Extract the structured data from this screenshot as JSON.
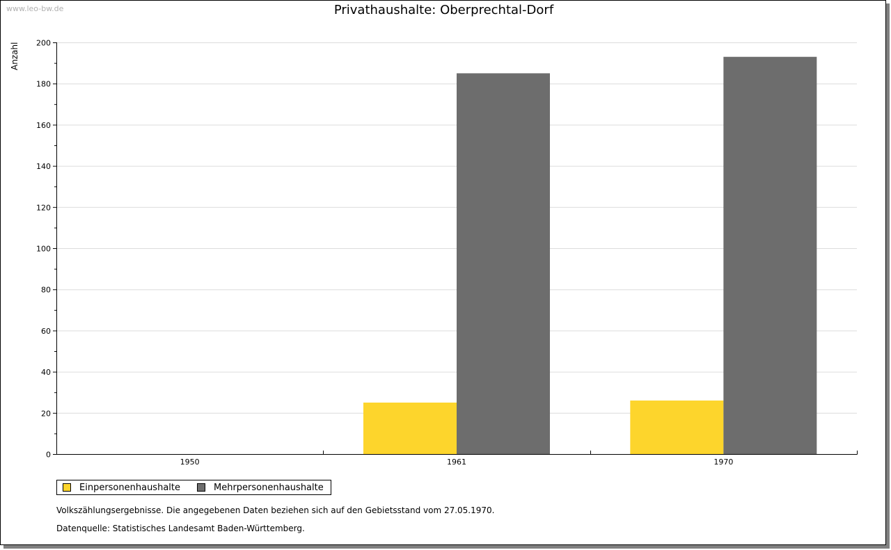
{
  "watermark": "www.leo-bw.de",
  "chart_data": {
    "type": "bar",
    "title": "Privathaushalte: Oberprechtal-Dorf",
    "xlabel": "",
    "ylabel": "Anzahl",
    "categories": [
      "1950",
      "1961",
      "1970"
    ],
    "series": [
      {
        "name": "Einpersonenhaushalte",
        "values": [
          0,
          25,
          26
        ],
        "color": "#fdd52c"
      },
      {
        "name": "Mehrpersonenhaushalte",
        "values": [
          0,
          185,
          193
        ],
        "color": "#6d6d6d"
      }
    ],
    "ylim": [
      0,
      200
    ],
    "yticks": [
      0,
      20,
      40,
      60,
      80,
      100,
      120,
      140,
      160,
      180,
      200
    ],
    "grid": true,
    "legend_position": "bottom-left"
  },
  "notes": {
    "line1": "Volkszählungsergebnisse. Die angegebenen Daten beziehen sich auf den Gebietsstand vom 27.05.1970.",
    "line2": "Datenquelle: Statistisches Landesamt Baden-Württemberg."
  }
}
